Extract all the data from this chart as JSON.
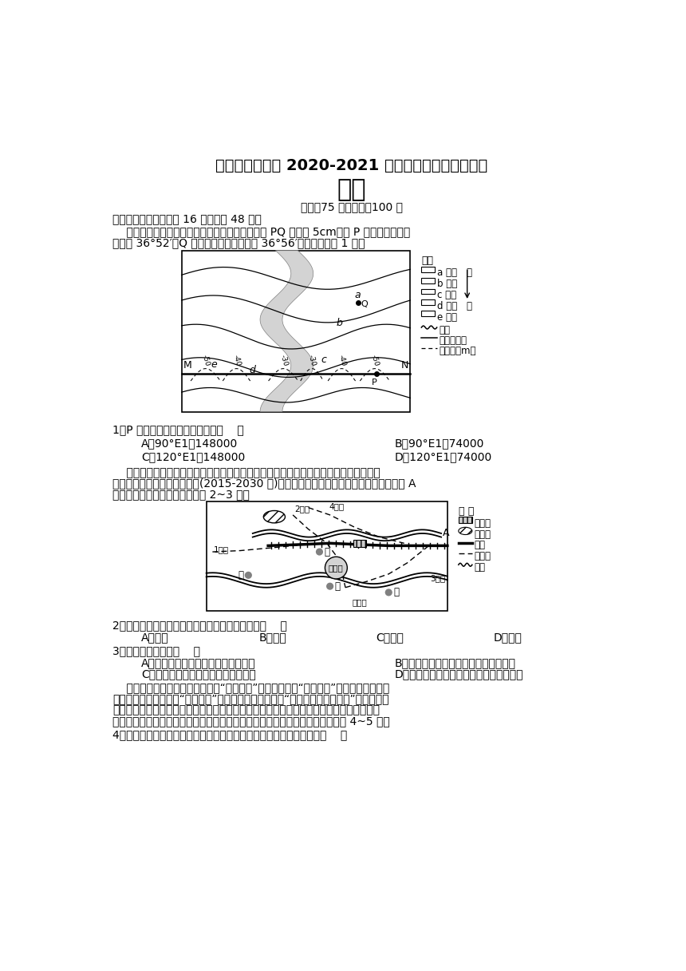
{
  "title1": "湘潭市重点中学 2020-2021 学年高二上学期期中考试",
  "title2": "地理",
  "subtitle": "时间：75 分钟满分：100 分",
  "section1": "一、单选题（本大题公 16 小题，公 48 分）",
  "para1a": "    如图为某河流域部分地区地层分布图，假设图中 PQ 距离为 5cm。在 P 处测得北极星高",
  "para1b": "度角为 36°52′，Q 处测得北极星高度角为 36°56′。据此完成第 1 题。",
  "q1": "1．P 点经度及该图比例尺分别是（    ）",
  "q1a": "A．90°E1：148000",
  "q1b": "B．90°E1：74000",
  "q1c": "C．120°E1：148000",
  "q1d": "D．120°E1：74000",
  "para2a": "    地铁是拉动城市发展的重要动力因素，地铁线路的规划影响城市功能区发展。下图为我",
  "para2b": "国中部某城市地铁线路规划图(2015-2030 年)，新中国成立以来，该城市的主城区一直在 A",
  "para2c": "河流以北地区。读图，完成下列 2~3 题。",
  "q2": "2．新中国成立以来，该城市的商业中心最可能是（    ）",
  "q2a": "A．甲地",
  "q2b": "B．乙地",
  "q2c": "C．丙地",
  "q2d": "D．丁地",
  "q3": "3．该城市地铁线路（    ）",
  "q3a": "A．呈放射状分布，有利于郊区城市化",
  "q3b": "B．多跨越河流和铁路，节约了建设投资",
  "q3c": "C．沟通河流两岸，优化城市空间结构",
  "q3d": "D．多联络原有商业中心，提升了服务功能",
  "para3a": "    地处雁荡山区的温州市泽雅镇有“千年纸乡”的美称，这里“泽雅屏纸”的制作技艺比较完",
  "para3b": "整地保存和传承了中国“四大发明”之一的造纸术，被誉为“中国古法造纸活化石”。当地造纸",
  "para3c": "的主要原料是竹子，竹子忌涝（积水会导致根部腐烂而死亡），适宜在土层深厚、保肥水、",
  "para3d": "透气性好的土壤上生长。近年来，泽雅屏纸的生存空间越来越小。据此完成下面 4~5 题。",
  "q4": "4．泽雅屏纸的造纸用竹多种植在临河的雁荡山坡地上，其原因可能是（    ）",
  "bg_color": "#ffffff",
  "text_color": "#000000"
}
